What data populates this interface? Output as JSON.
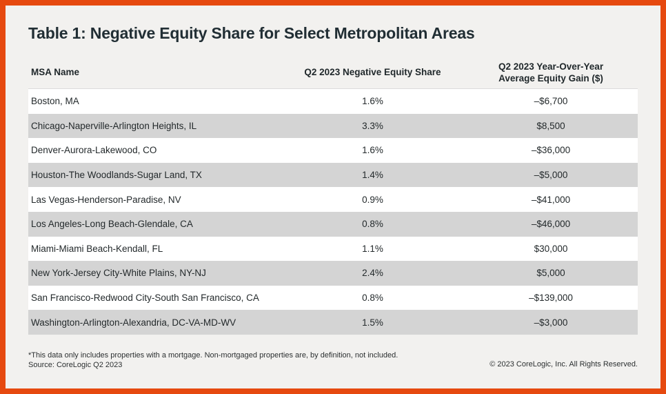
{
  "page": {
    "title": "Table 1: Negative Equity Share for Select Metropolitan Areas"
  },
  "table": {
    "headers": {
      "msa": "MSA Name",
      "share": "Q2 2023  Negative Equity Share",
      "gain": "Q2 2023 Year-Over-Year\nAverage Equity Gain ($)"
    },
    "rows": [
      {
        "msa": "Boston, MA",
        "share": "1.6%",
        "gain": "–$6,700"
      },
      {
        "msa": "Chicago-Naperville-Arlington Heights, IL",
        "share": "3.3%",
        "gain": "$8,500"
      },
      {
        "msa": "Denver-Aurora-Lakewood, CO",
        "share": "1.6%",
        "gain": "–$36,000"
      },
      {
        "msa": "Houston-The Woodlands-Sugar Land, TX",
        "share": "1.4%",
        "gain": "–$5,000"
      },
      {
        "msa": "Las Vegas-Henderson-Paradise, NV",
        "share": "0.9%",
        "gain": "–$41,000"
      },
      {
        "msa": "Los Angeles-Long Beach-Glendale, CA",
        "share": "0.8%",
        "gain": "–$46,000"
      },
      {
        "msa": "Miami-Miami Beach-Kendall, FL",
        "share": "1.1%",
        "gain": "$30,000"
      },
      {
        "msa": "New York-Jersey City-White Plains, NY-NJ",
        "share": "2.4%",
        "gain": "$5,000"
      },
      {
        "msa": "San Francisco-Redwood City-South San Francisco, CA",
        "share": "0.8%",
        "gain": "–$139,000"
      },
      {
        "msa": "Washington-Arlington-Alexandria, DC-VA-MD-WV",
        "share": "1.5%",
        "gain": "–$3,000"
      }
    ]
  },
  "footer": {
    "note": "*This data only includes properties with a mortgage. Non-mortgaged properties are, by definition, not included.",
    "source": "Source: CoreLogic Q2 2023",
    "copyright": "© 2023 CoreLogic, Inc. All Rights Reserved."
  },
  "colors": {
    "frame_orange": "#E6490F",
    "background": "#F2F1EF",
    "row_white": "#FFFFFF",
    "row_alt_gray": "#D4D4D4",
    "text_dark": "#212E34"
  },
  "chart_data": {
    "type": "table",
    "title": "Table 1: Negative Equity Share for Select Metropolitan Areas",
    "columns": [
      "MSA Name",
      "Q2 2023 Negative Equity Share",
      "Q2 2023 Year-Over-Year Average Equity Gain ($)"
    ],
    "rows": [
      [
        "Boston, MA",
        "1.6%",
        "–$6,700"
      ],
      [
        "Chicago-Naperville-Arlington Heights, IL",
        "3.3%",
        "$8,500"
      ],
      [
        "Denver-Aurora-Lakewood, CO",
        "1.6%",
        "–$36,000"
      ],
      [
        "Houston-The Woodlands-Sugar Land, TX",
        "1.4%",
        "–$5,000"
      ],
      [
        "Las Vegas-Henderson-Paradise, NV",
        "0.9%",
        "–$41,000"
      ],
      [
        "Los Angeles-Long Beach-Glendale, CA",
        "0.8%",
        "–$46,000"
      ],
      [
        "Miami-Miami Beach-Kendall, FL",
        "1.1%",
        "$30,000"
      ],
      [
        "New York-Jersey City-White Plains, NY-NJ",
        "2.4%",
        "$5,000"
      ],
      [
        "San Francisco-Redwood City-South San Francisco, CA",
        "0.8%",
        "–$139,000"
      ],
      [
        "Washington-Arlington-Alexandria, DC-VA-MD-WV",
        "1.5%",
        "–$3,000"
      ]
    ],
    "negative_equity_share_pct": [
      1.6,
      3.3,
      1.6,
      1.4,
      0.9,
      0.8,
      1.1,
      2.4,
      0.8,
      1.5
    ],
    "yoy_avg_equity_gain_usd": [
      -6700,
      8500,
      -36000,
      -5000,
      -41000,
      -46000,
      30000,
      5000,
      -139000,
      -3000
    ],
    "footnote": "*This data only includes properties with a mortgage. Non-mortgaged properties are, by definition, not included.",
    "source": "Source: CoreLogic Q2 2023",
    "copyright": "© 2023 CoreLogic, Inc. All Rights Reserved."
  }
}
